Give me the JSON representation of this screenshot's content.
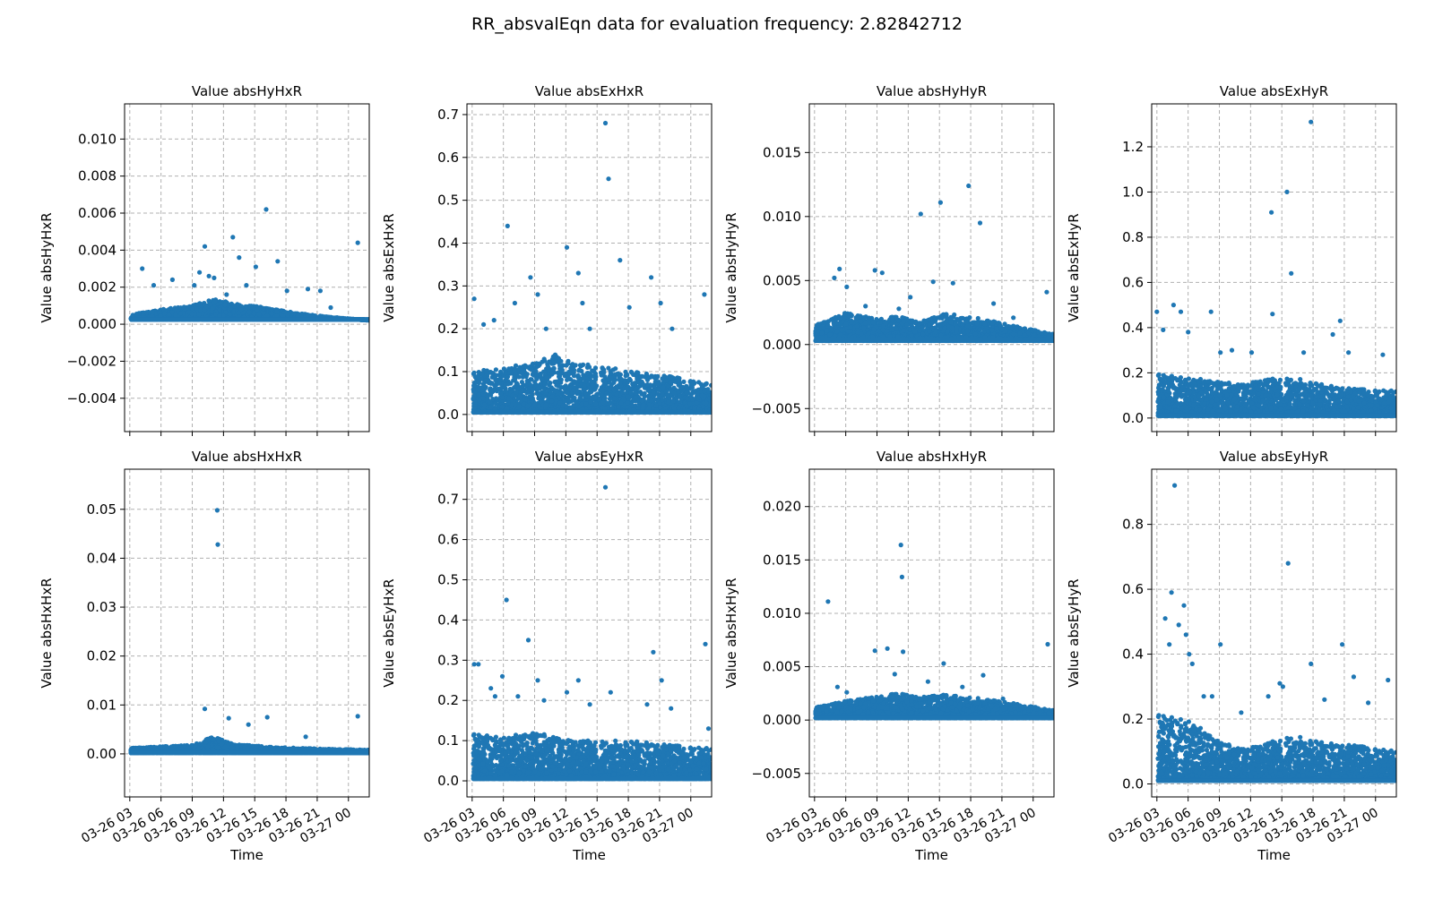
{
  "figure": {
    "title": "RR_absvalEqn data for evaluation frequency: 2.82842712",
    "xlabel": "Time",
    "time_ticks": [
      "03-26 03",
      "03-26 06",
      "03-26 09",
      "03-26 12",
      "03-26 15",
      "03-26 18",
      "03-26 21",
      "03-27 00"
    ],
    "marker_color": "#1f77b4",
    "grid_color": "#b0b0b0"
  },
  "chart_data": [
    {
      "type": "scatter",
      "title": "Value absHyHxR",
      "xlabel": "",
      "ylabel": "Value absHyHxR",
      "x_range_hours": [
        2.5,
        26.0
      ],
      "ylim": [
        -0.0058,
        0.0119
      ],
      "yticks": [
        -0.004,
        -0.002,
        0.0,
        0.002,
        0.004,
        0.006,
        0.008,
        0.01
      ],
      "ytick_labels": [
        "−0.004",
        "−0.002",
        "0.000",
        "0.002",
        "0.004",
        "0.006",
        "0.008",
        "0.010"
      ],
      "grid": true,
      "bulk_density": {
        "baseline": 0.00025,
        "levels_hours": [
          3,
          6,
          9,
          11,
          13,
          16,
          19,
          22,
          26
        ],
        "levels": [
          0.0005,
          0.0008,
          0.001,
          0.0014,
          0.0011,
          0.0009,
          0.0006,
          0.0004,
          0.0002
        ]
      },
      "outliers": [
        [
          4.2,
          0.003
        ],
        [
          5.3,
          0.0021
        ],
        [
          7.1,
          0.0024
        ],
        [
          9.2,
          0.0021
        ],
        [
          9.7,
          0.0028
        ],
        [
          10.2,
          0.0042
        ],
        [
          10.6,
          0.0026
        ],
        [
          11.1,
          0.0025
        ],
        [
          12.3,
          0.0016
        ],
        [
          12.9,
          0.0047
        ],
        [
          13.5,
          0.0036
        ],
        [
          14.2,
          0.0021
        ],
        [
          15.1,
          0.0031
        ],
        [
          16.1,
          0.0062
        ],
        [
          17.2,
          0.0034
        ],
        [
          18.1,
          0.0018
        ],
        [
          20.1,
          0.0019
        ],
        [
          21.3,
          0.0018
        ],
        [
          22.3,
          0.0009
        ],
        [
          24.9,
          0.0044
        ]
      ]
    },
    {
      "type": "scatter",
      "title": "Value absExHxR",
      "xlabel": "",
      "ylabel": "Value absExHxR",
      "x_range_hours": [
        2.5,
        26.0
      ],
      "ylim": [
        -0.04,
        0.725
      ],
      "yticks": [
        0.0,
        0.1,
        0.2,
        0.3,
        0.4,
        0.5,
        0.6,
        0.7
      ],
      "ytick_labels": [
        "0.0",
        "0.1",
        "0.2",
        "0.3",
        "0.4",
        "0.5",
        "0.6",
        "0.7"
      ],
      "grid": true,
      "bulk_density": {
        "baseline": 0.005,
        "levels_hours": [
          3,
          6,
          9,
          11,
          13,
          16,
          19,
          22,
          26
        ],
        "levels": [
          0.1,
          0.11,
          0.12,
          0.14,
          0.12,
          0.11,
          0.1,
          0.09,
          0.07
        ]
      },
      "outliers": [
        [
          3.2,
          0.27
        ],
        [
          4.1,
          0.21
        ],
        [
          5.1,
          0.22
        ],
        [
          6.4,
          0.44
        ],
        [
          7.1,
          0.26
        ],
        [
          8.6,
          0.32
        ],
        [
          9.3,
          0.28
        ],
        [
          10.1,
          0.2
        ],
        [
          12.1,
          0.39
        ],
        [
          13.2,
          0.33
        ],
        [
          13.6,
          0.26
        ],
        [
          14.3,
          0.2
        ],
        [
          15.8,
          0.68
        ],
        [
          16.1,
          0.55
        ],
        [
          17.2,
          0.36
        ],
        [
          18.1,
          0.25
        ],
        [
          20.2,
          0.32
        ],
        [
          21.1,
          0.26
        ],
        [
          22.2,
          0.2
        ],
        [
          25.3,
          0.28
        ]
      ]
    },
    {
      "type": "scatter",
      "title": "Value absHyHyR",
      "xlabel": "",
      "ylabel": "Value absHyHyR",
      "x_range_hours": [
        2.5,
        26.0
      ],
      "ylim": [
        -0.0068,
        0.0188
      ],
      "yticks": [
        -0.005,
        0.0,
        0.005,
        0.01,
        0.015
      ],
      "ytick_labels": [
        "−0.005",
        "0.000",
        "0.005",
        "0.010",
        "0.015"
      ],
      "grid": true,
      "bulk_density": {
        "baseline": 0.0003,
        "levels_hours": [
          3,
          6,
          9,
          11,
          13,
          16,
          19,
          22,
          26
        ],
        "levels": [
          0.0015,
          0.0025,
          0.002,
          0.0022,
          0.0018,
          0.0025,
          0.002,
          0.0015,
          0.0008
        ]
      },
      "outliers": [
        [
          4.9,
          0.0052
        ],
        [
          5.4,
          0.0059
        ],
        [
          6.1,
          0.0045
        ],
        [
          7.9,
          0.003
        ],
        [
          8.8,
          0.0058
        ],
        [
          9.5,
          0.0056
        ],
        [
          11.1,
          0.0028
        ],
        [
          12.2,
          0.0037
        ],
        [
          13.2,
          0.0102
        ],
        [
          14.4,
          0.0049
        ],
        [
          15.1,
          0.0111
        ],
        [
          16.3,
          0.0048
        ],
        [
          17.8,
          0.0124
        ],
        [
          18.9,
          0.0095
        ],
        [
          20.2,
          0.0032
        ],
        [
          22.1,
          0.0021
        ],
        [
          25.3,
          0.0041
        ]
      ]
    },
    {
      "type": "scatter",
      "title": "Value absExHyR",
      "xlabel": "",
      "ylabel": "Value absExHyR",
      "x_range_hours": [
        2.5,
        26.0
      ],
      "ylim": [
        -0.06,
        1.39
      ],
      "yticks": [
        0.0,
        0.2,
        0.4,
        0.6,
        0.8,
        1.0,
        1.2
      ],
      "ytick_labels": [
        "0.0",
        "0.2",
        "0.4",
        "0.6",
        "0.8",
        "1.0",
        "1.2"
      ],
      "grid": true,
      "bulk_density": {
        "baseline": 0.01,
        "levels_hours": [
          3,
          6,
          9,
          11,
          13,
          16,
          19,
          22,
          26
        ],
        "levels": [
          0.2,
          0.18,
          0.16,
          0.15,
          0.17,
          0.18,
          0.15,
          0.13,
          0.12
        ]
      },
      "outliers": [
        [
          3.0,
          0.47
        ],
        [
          3.6,
          0.39
        ],
        [
          4.6,
          0.5
        ],
        [
          5.3,
          0.47
        ],
        [
          6.0,
          0.38
        ],
        [
          8.2,
          0.47
        ],
        [
          9.1,
          0.29
        ],
        [
          10.2,
          0.3
        ],
        [
          12.1,
          0.29
        ],
        [
          14.0,
          0.91
        ],
        [
          14.1,
          0.46
        ],
        [
          15.5,
          1.0
        ],
        [
          15.9,
          0.64
        ],
        [
          17.1,
          0.29
        ],
        [
          17.8,
          1.31
        ],
        [
          19.9,
          0.37
        ],
        [
          20.6,
          0.43
        ],
        [
          21.4,
          0.29
        ],
        [
          24.7,
          0.28
        ]
      ]
    },
    {
      "type": "scatter",
      "title": "Value absHxHxR",
      "xlabel": "Time",
      "ylabel": "Value absHxHxR",
      "x_range_hours": [
        2.5,
        26.0
      ],
      "ylim": [
        -0.0088,
        0.0582
      ],
      "yticks": [
        0.0,
        0.01,
        0.02,
        0.03,
        0.04,
        0.05
      ],
      "ytick_labels": [
        "0.00",
        "0.01",
        "0.02",
        "0.03",
        "0.04",
        "0.05"
      ],
      "grid": true,
      "bulk_density": {
        "baseline": 0.0002,
        "levels_hours": [
          3,
          6,
          9,
          11,
          13,
          16,
          19,
          22,
          26
        ],
        "levels": [
          0.0012,
          0.0015,
          0.0018,
          0.0035,
          0.002,
          0.0015,
          0.0012,
          0.001,
          0.0008
        ]
      },
      "outliers": [
        [
          10.2,
          0.0092
        ],
        [
          11.4,
          0.0498
        ],
        [
          11.45,
          0.0428
        ],
        [
          12.5,
          0.0073
        ],
        [
          14.4,
          0.006
        ],
        [
          16.2,
          0.0075
        ],
        [
          19.9,
          0.0035
        ],
        [
          24.9,
          0.0077
        ]
      ]
    },
    {
      "type": "scatter",
      "title": "Value absEyHxR",
      "xlabel": "Time",
      "ylabel": "Value absEyHxR",
      "x_range_hours": [
        2.5,
        26.0
      ],
      "ylim": [
        -0.04,
        0.775
      ],
      "yticks": [
        0.0,
        0.1,
        0.2,
        0.3,
        0.4,
        0.5,
        0.6,
        0.7
      ],
      "ytick_labels": [
        "0.0",
        "0.1",
        "0.2",
        "0.3",
        "0.4",
        "0.5",
        "0.6",
        "0.7"
      ],
      "grid": true,
      "bulk_density": {
        "baseline": 0.005,
        "levels_hours": [
          3,
          6,
          9,
          11,
          13,
          16,
          19,
          22,
          26
        ],
        "levels": [
          0.12,
          0.11,
          0.12,
          0.11,
          0.1,
          0.1,
          0.1,
          0.09,
          0.08
        ]
      },
      "outliers": [
        [
          3.2,
          0.29
        ],
        [
          3.6,
          0.29
        ],
        [
          4.8,
          0.23
        ],
        [
          5.2,
          0.21
        ],
        [
          5.9,
          0.26
        ],
        [
          6.3,
          0.45
        ],
        [
          7.4,
          0.21
        ],
        [
          8.4,
          0.35
        ],
        [
          9.3,
          0.25
        ],
        [
          9.9,
          0.2
        ],
        [
          12.1,
          0.22
        ],
        [
          13.2,
          0.25
        ],
        [
          14.3,
          0.19
        ],
        [
          15.8,
          0.73
        ],
        [
          16.3,
          0.22
        ],
        [
          19.8,
          0.19
        ],
        [
          20.4,
          0.32
        ],
        [
          21.2,
          0.25
        ],
        [
          22.1,
          0.18
        ],
        [
          25.4,
          0.34
        ],
        [
          25.7,
          0.13
        ]
      ]
    },
    {
      "type": "scatter",
      "title": "Value absHxHyR",
      "xlabel": "Time",
      "ylabel": "Value absHxHyR",
      "x_range_hours": [
        2.5,
        26.0
      ],
      "ylim": [
        -0.0072,
        0.0235
      ],
      "yticks": [
        -0.005,
        0.0,
        0.005,
        0.01,
        0.015,
        0.02
      ],
      "ytick_labels": [
        "−0.005",
        "0.000",
        "0.005",
        "0.010",
        "0.015",
        "0.020"
      ],
      "grid": true,
      "bulk_density": {
        "baseline": 0.0002,
        "levels_hours": [
          3,
          6,
          9,
          11,
          13,
          16,
          19,
          22,
          26
        ],
        "levels": [
          0.0012,
          0.0018,
          0.0022,
          0.0025,
          0.0022,
          0.0024,
          0.002,
          0.0016,
          0.0009
        ]
      },
      "outliers": [
        [
          4.3,
          0.0111
        ],
        [
          5.2,
          0.0031
        ],
        [
          6.1,
          0.0026
        ],
        [
          8.8,
          0.0065
        ],
        [
          10.0,
          0.0067
        ],
        [
          10.7,
          0.0043
        ],
        [
          11.3,
          0.0164
        ],
        [
          11.4,
          0.0134
        ],
        [
          11.5,
          0.0064
        ],
        [
          13.9,
          0.0036
        ],
        [
          15.4,
          0.0053
        ],
        [
          17.2,
          0.0031
        ],
        [
          19.2,
          0.0042
        ],
        [
          21.1,
          0.002
        ],
        [
          25.4,
          0.0071
        ]
      ]
    },
    {
      "type": "scatter",
      "title": "Value absEyHyR",
      "xlabel": "Time",
      "ylabel": "Value absEyHyR",
      "x_range_hours": [
        2.5,
        26.0
      ],
      "ylim": [
        -0.04,
        0.97
      ],
      "yticks": [
        0.0,
        0.2,
        0.4,
        0.6,
        0.8
      ],
      "ytick_labels": [
        "0.0",
        "0.2",
        "0.4",
        "0.6",
        "0.8"
      ],
      "grid": true,
      "bulk_density": {
        "baseline": 0.01,
        "levels_hours": [
          3,
          6,
          9,
          11,
          13,
          16,
          19,
          22,
          26
        ],
        "levels": [
          0.22,
          0.2,
          0.13,
          0.11,
          0.12,
          0.15,
          0.13,
          0.12,
          0.1
        ]
      },
      "outliers": [
        [
          3.8,
          0.51
        ],
        [
          4.2,
          0.43
        ],
        [
          4.4,
          0.59
        ],
        [
          4.7,
          0.92
        ],
        [
          5.1,
          0.49
        ],
        [
          5.6,
          0.55
        ],
        [
          5.8,
          0.46
        ],
        [
          6.1,
          0.4
        ],
        [
          6.4,
          0.37
        ],
        [
          7.5,
          0.27
        ],
        [
          8.3,
          0.27
        ],
        [
          9.1,
          0.43
        ],
        [
          11.1,
          0.22
        ],
        [
          13.7,
          0.27
        ],
        [
          14.8,
          0.31
        ],
        [
          15.1,
          0.3
        ],
        [
          15.6,
          0.68
        ],
        [
          17.8,
          0.37
        ],
        [
          19.1,
          0.26
        ],
        [
          20.8,
          0.43
        ],
        [
          21.9,
          0.33
        ],
        [
          23.3,
          0.25
        ],
        [
          25.2,
          0.32
        ]
      ]
    }
  ]
}
